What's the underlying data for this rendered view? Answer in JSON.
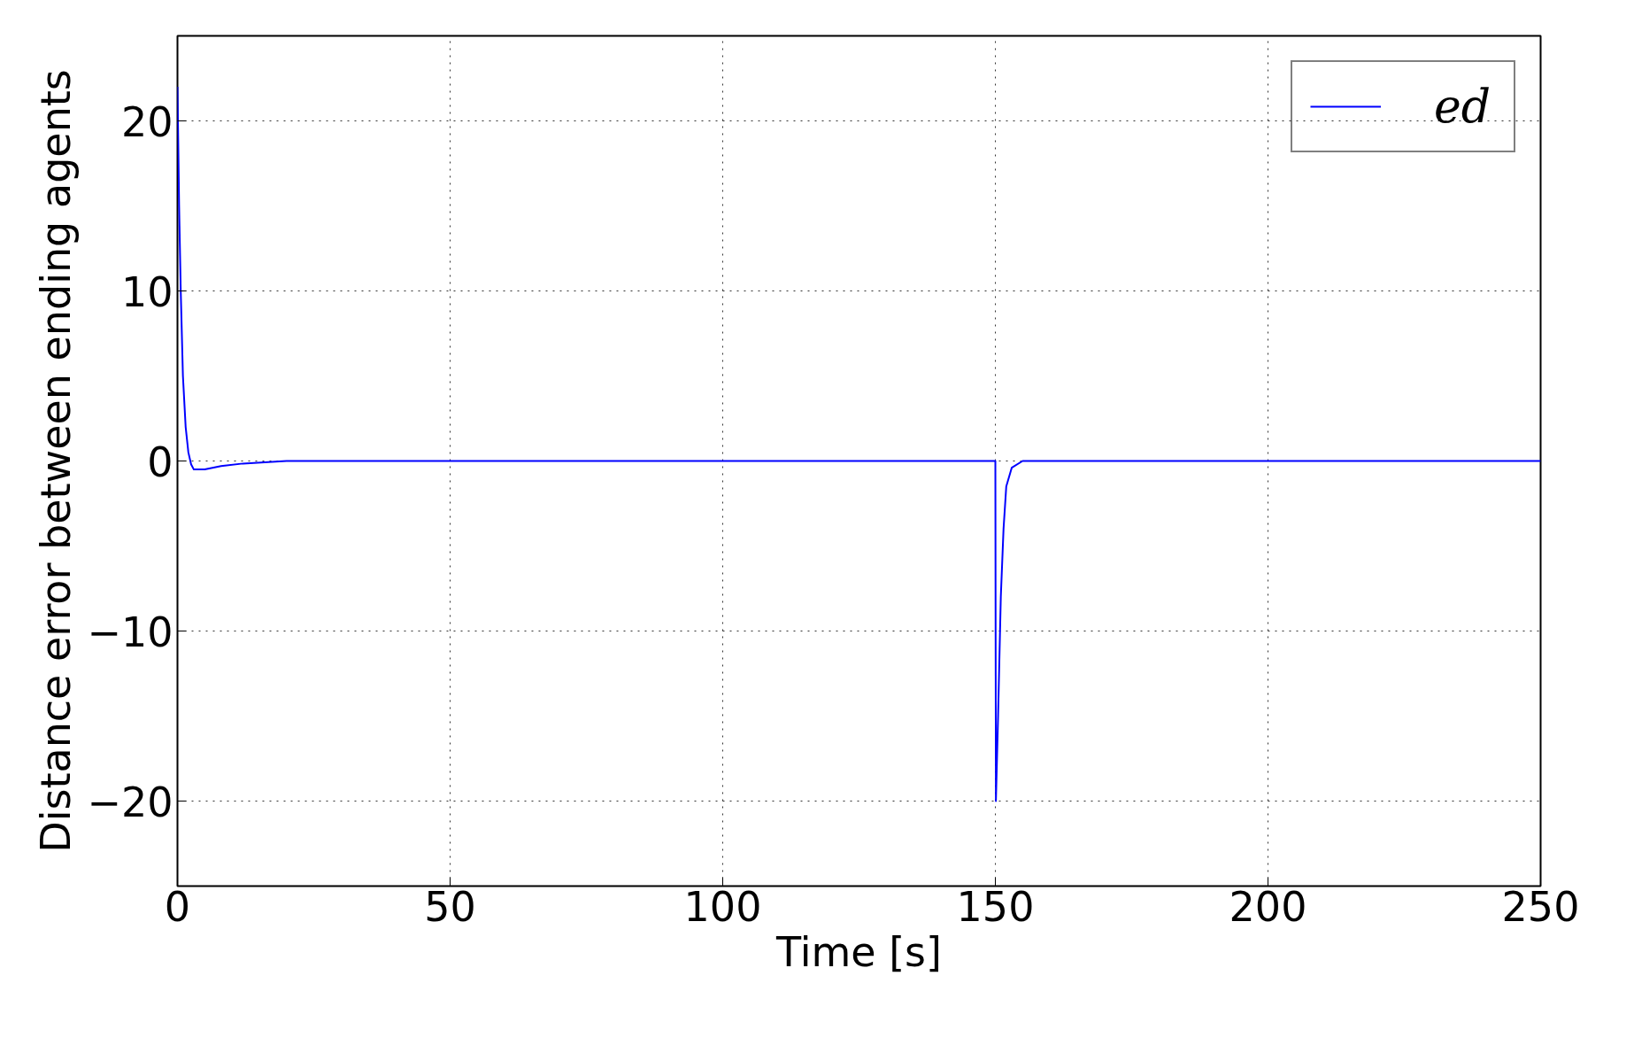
{
  "chart_data": {
    "type": "line",
    "xlabel": "Time [s]",
    "ylabel": "Distance error between ending agents",
    "xlim": [
      0,
      250
    ],
    "ylim": [
      -25,
      25
    ],
    "xticks": [
      0,
      50,
      100,
      150,
      200,
      250
    ],
    "yticks": [
      {
        "value": -20,
        "label": "−20"
      },
      {
        "value": -10,
        "label": "−10"
      },
      0,
      10,
      20
    ],
    "grid": true,
    "legend": "top right",
    "line_style": "solid",
    "marker": "none",
    "series": [
      {
        "name": "ed",
        "color": "#0000ff",
        "x": [
          0,
          0.3,
          0.6,
          1,
          1.5,
          2,
          2.5,
          3,
          5,
          8,
          12,
          20,
          150,
          150.1,
          150.5,
          151,
          151.5,
          152,
          153,
          155,
          250
        ],
        "values": [
          22,
          15,
          10,
          5,
          2,
          0.5,
          -0.2,
          -0.5,
          -0.5,
          -0.3,
          -0.15,
          0,
          0,
          -20,
          -15,
          -8,
          -4,
          -1.5,
          -0.4,
          0,
          0
        ]
      }
    ]
  }
}
